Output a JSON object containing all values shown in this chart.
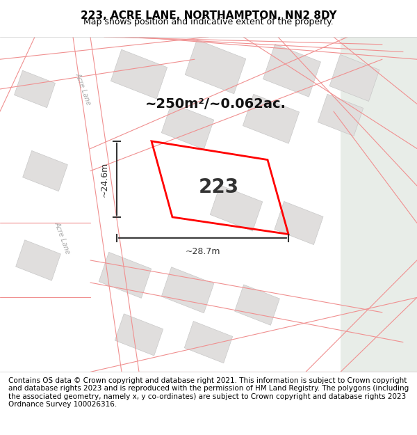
{
  "title": "223, ACRE LANE, NORTHAMPTON, NN2 8DY",
  "subtitle": "Map shows position and indicative extent of the property.",
  "footer": "Contains OS data © Crown copyright and database right 2021. This information is subject to Crown copyright and database rights 2023 and is reproduced with the permission of HM Land Registry. The polygons (including the associated geometry, namely x, y co-ordinates) are subject to Crown copyright and database rights 2023 Ordnance Survey 100026316.",
  "area_label": "~250m²/~0.062ac.",
  "number_label": "223",
  "dim_width": "~28.7m",
  "dim_height": "~24.6m",
  "bg_color": "#f5f3f0",
  "map_bg": "#f5f3f0",
  "road_color": "#ffffff",
  "building_fill": "#e8e8e8",
  "building_edge": "#cccccc",
  "road_line_color": "#f0c0c0",
  "green_area": "#e8f0e8",
  "plot_color": "#ff0000",
  "dim_color": "#333333",
  "title_fontsize": 11,
  "subtitle_fontsize": 9,
  "footer_fontsize": 7.5,
  "label_fontsize": 14,
  "number_fontsize": 20
}
